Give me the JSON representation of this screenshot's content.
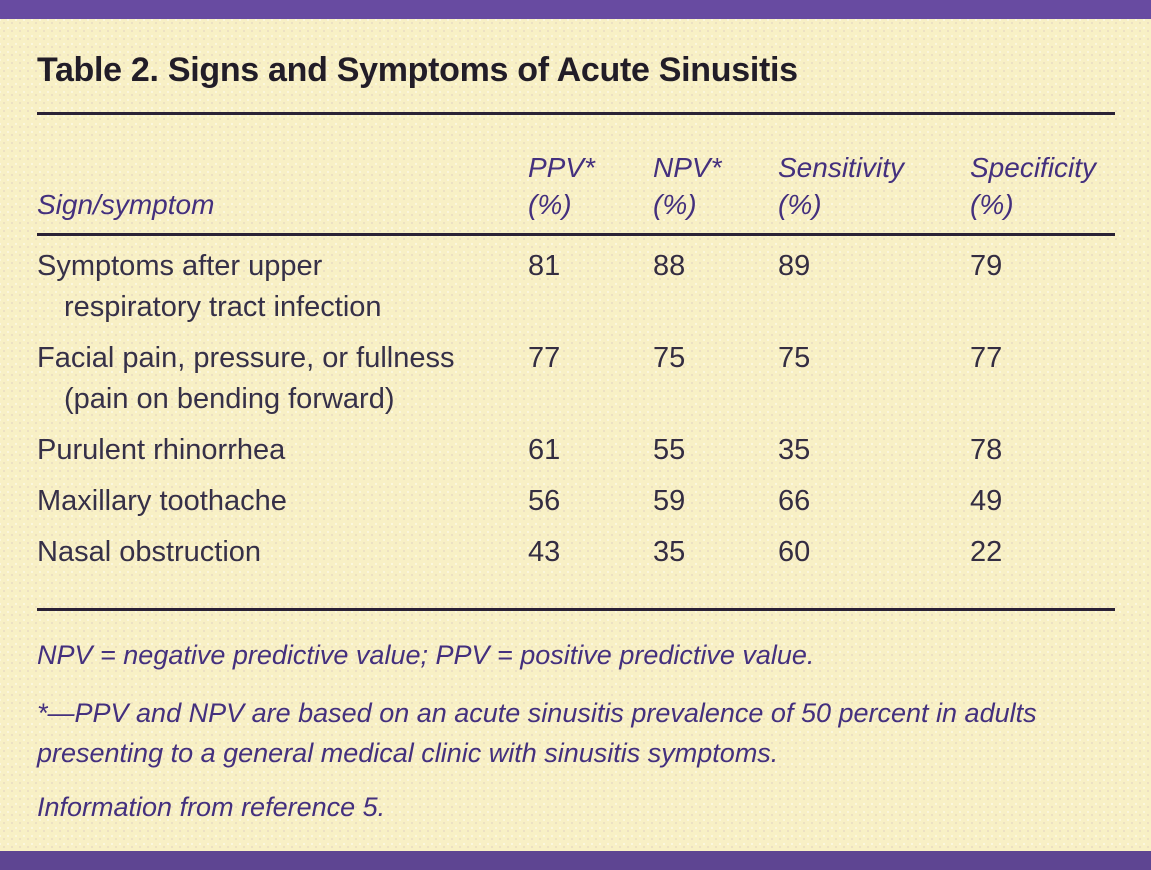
{
  "title": "Table 2. Signs and Symptoms of Acute Sinusitis",
  "colors": {
    "top_bar": "#684BA1",
    "bottom_bar": "#5E4592",
    "background": "#F8F0C5",
    "rule": "#2A2135",
    "title_text": "#221D28",
    "body_text": "#363048",
    "accent_purple_text": "#44307E"
  },
  "table": {
    "header": {
      "sign_symptom": "Sign/symptom",
      "cols": [
        {
          "line1": "PPV*",
          "line2": "(%)"
        },
        {
          "line1": "NPV*",
          "line2": "(%)"
        },
        {
          "line1": "Sensitivity",
          "line2": "(%)"
        },
        {
          "line1": "Specificity",
          "line2": "(%)"
        }
      ]
    },
    "rows": [
      {
        "lines": [
          "Symptoms after upper",
          "respiratory tract infection"
        ],
        "values": [
          "81",
          "88",
          "89",
          "79"
        ]
      },
      {
        "lines": [
          "Facial pain, pressure, or fullness",
          "(pain on bending forward)"
        ],
        "values": [
          "77",
          "75",
          "75",
          "77"
        ]
      },
      {
        "lines": [
          "Purulent rhinorrhea"
        ],
        "values": [
          "61",
          "55",
          "35",
          "78"
        ]
      },
      {
        "lines": [
          "Maxillary toothache"
        ],
        "values": [
          "56",
          "59",
          "66",
          "49"
        ]
      },
      {
        "lines": [
          "Nasal obstruction"
        ],
        "values": [
          "43",
          "35",
          "60",
          "22"
        ]
      }
    ]
  },
  "footnotes": [
    "NPV = negative predictive value; PPV = positive predictive value.",
    "*—PPV and NPV are based on an acute sinusitis prevalence of 50 percent in adults presenting to a general medical clinic with sinusitis symptoms.",
    "Information from reference 5."
  ]
}
